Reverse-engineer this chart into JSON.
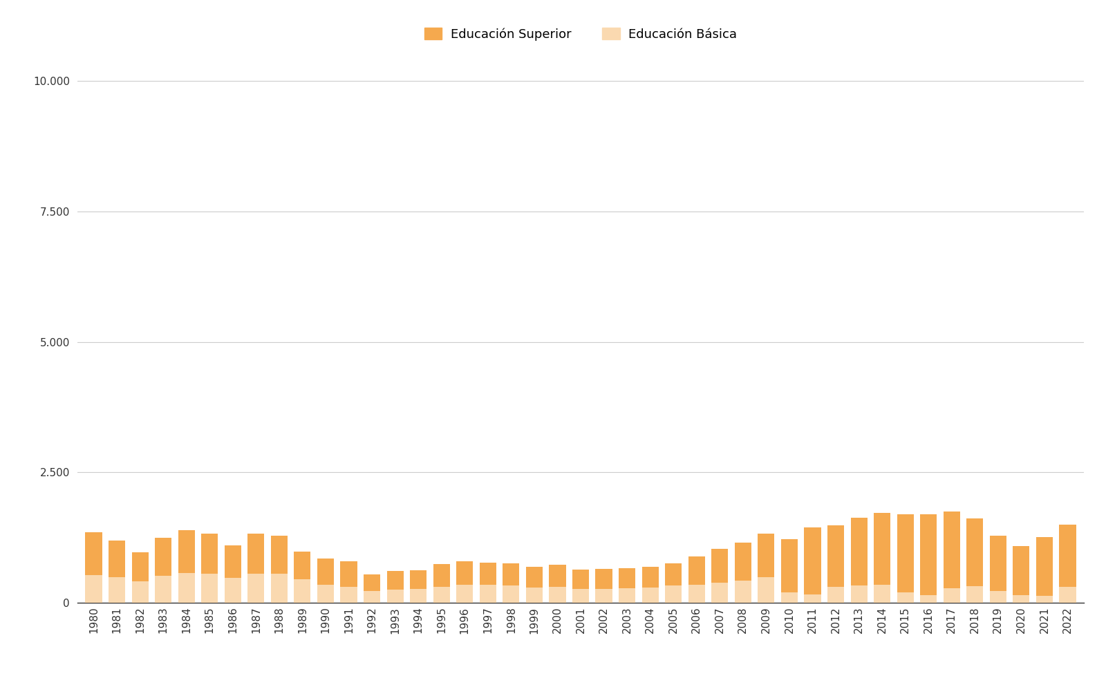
{
  "years": [
    1980,
    1981,
    1982,
    1983,
    1984,
    1985,
    1986,
    1987,
    1988,
    1989,
    1990,
    1991,
    1992,
    1993,
    1994,
    1995,
    1996,
    1997,
    1998,
    1999,
    2000,
    2001,
    2002,
    2003,
    2004,
    2005,
    2006,
    2007,
    2008,
    2009,
    2010,
    2011,
    2012,
    2013,
    2014,
    2015,
    2016,
    2017,
    2018,
    2019,
    2020,
    2021,
    2022
  ],
  "superior": [
    820,
    700,
    560,
    730,
    820,
    760,
    620,
    770,
    730,
    530,
    500,
    500,
    320,
    360,
    370,
    430,
    450,
    430,
    420,
    400,
    420,
    370,
    380,
    380,
    400,
    430,
    540,
    640,
    720,
    830,
    1020,
    1280,
    1180,
    1300,
    1370,
    1500,
    1550,
    1470,
    1300,
    1070,
    940,
    1130,
    1200
  ],
  "basica": [
    530,
    490,
    410,
    520,
    570,
    560,
    480,
    560,
    560,
    450,
    350,
    300,
    230,
    250,
    260,
    310,
    340,
    340,
    330,
    290,
    310,
    270,
    270,
    280,
    290,
    330,
    350,
    390,
    430,
    490,
    200,
    160,
    300,
    330,
    350,
    200,
    150,
    280,
    320,
    220,
    150,
    130,
    300
  ],
  "color_superior": "#F5A94E",
  "color_basica": "#FAD9B0",
  "legend_superior": "Educación Superior",
  "legend_basica": "Educación Básica",
  "ylim": [
    0,
    10500
  ],
  "yticks": [
    0,
    2500,
    5000,
    7500,
    10000
  ],
  "ytick_labels": [
    "0",
    "2.500",
    "5.000",
    "7.500",
    "10.000"
  ],
  "background_color": "#ffffff",
  "grid_color": "#cccccc",
  "bar_width": 0.72,
  "spine_bottom_color": "#333333",
  "tick_label_color": "#333333",
  "tick_fontsize": 11,
  "legend_fontsize": 13
}
